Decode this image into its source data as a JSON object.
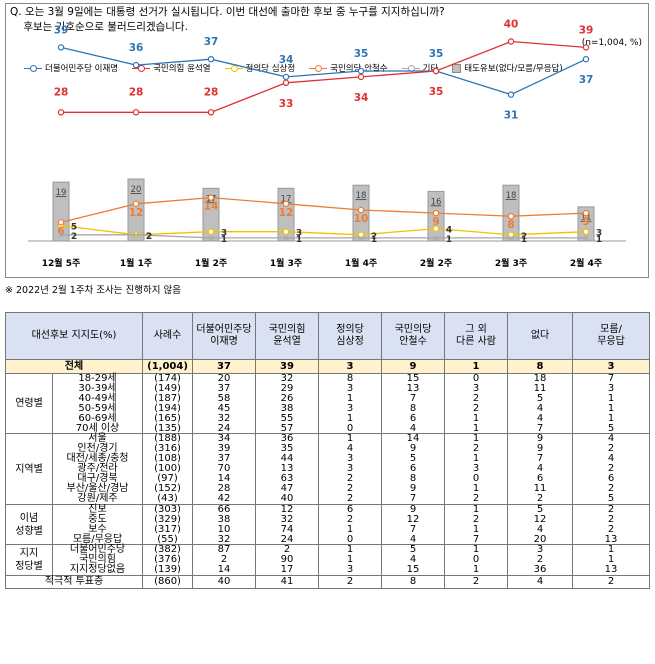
{
  "question": {
    "line1": "Q. 오는 3월 9일에는 대통령 선거가 실시됩니다. 이번 대선에 출마한 후보 중 누구를 지지하십니까?",
    "line2": "    후보는 기호순으로 불러드리겠습니다.",
    "sample": "(n=1,004, %)"
  },
  "footnote": "※ 2022년 2월 1주차 조사는 진행하지 않음",
  "chart_data": {
    "type": "line",
    "title": "",
    "categories": [
      "12월 5주",
      "1월 1주",
      "1월 2주",
      "1월 3주",
      "1월 4주",
      "2월 2주",
      "2월 3주",
      "2월 4주"
    ],
    "series": [
      {
        "name": "더불어민주당 이재명",
        "color": "#2e75b6",
        "values": [
          39,
          36,
          37,
          34,
          35,
          35,
          31,
          37
        ]
      },
      {
        "name": "국민의힘 윤석열",
        "color": "#e03030",
        "values": [
          28,
          28,
          28,
          33,
          34,
          35,
          40,
          39
        ]
      },
      {
        "name": "정의당 심상정",
        "color": "#f2c200",
        "values": [
          5,
          2,
          3,
          3,
          2,
          4,
          2,
          3
        ]
      },
      {
        "name": "국민의당 안철수",
        "color": "#ed7d31",
        "values": [
          6,
          12,
          14,
          12,
          10,
          9,
          8,
          9
        ]
      },
      {
        "name": "기타",
        "color": "#a6a6a6",
        "values": [
          2,
          2,
          1,
          1,
          1,
          1,
          1,
          1
        ]
      },
      {
        "name": "태도유보(없다/모름/무응답)",
        "type": "bar",
        "color": "#bfbfbf",
        "values": [
          19,
          20,
          17,
          17,
          18,
          16,
          18,
          11
        ]
      }
    ]
  },
  "table": {
    "headers": [
      "대선후보 지지도(%)",
      "사례수",
      "더불어민주당\n이재명",
      "국민의힘\n윤석열",
      "정의당\n심상정",
      "국민의당\n안철수",
      "그 외\n다른 사람",
      "없다",
      "모름/\n무응답"
    ],
    "total": {
      "label": "전체",
      "n": "(1,004)",
      "values": [
        "37",
        "39",
        "3",
        "9",
        "1",
        "8",
        "3"
      ]
    },
    "groups": [
      {
        "name": "연령별",
        "rows": [
          {
            "label": "18-29세",
            "n": "(174)",
            "values": [
              "20",
              "32",
              "8",
              "15",
              "0",
              "18",
              "7"
            ]
          },
          {
            "label": "30-39세",
            "n": "(149)",
            "values": [
              "37",
              "29",
              "3",
              "13",
              "3",
              "11",
              "3"
            ]
          },
          {
            "label": "40-49세",
            "n": "(187)",
            "values": [
              "58",
              "26",
              "1",
              "7",
              "2",
              "5",
              "1"
            ]
          },
          {
            "label": "50-59세",
            "n": "(194)",
            "values": [
              "45",
              "38",
              "3",
              "8",
              "2",
              "4",
              "1"
            ]
          },
          {
            "label": "60-69세",
            "n": "(165)",
            "values": [
              "32",
              "55",
              "1",
              "6",
              "1",
              "4",
              "1"
            ]
          },
          {
            "label": "70세 이상",
            "n": "(135)",
            "values": [
              "24",
              "57",
              "0",
              "4",
              "1",
              "7",
              "5"
            ]
          }
        ]
      },
      {
        "name": "지역별",
        "rows": [
          {
            "label": "서울",
            "n": "(188)",
            "values": [
              "34",
              "36",
              "1",
              "14",
              "1",
              "9",
              "4"
            ]
          },
          {
            "label": "인천/경기",
            "n": "(316)",
            "values": [
              "39",
              "35",
              "4",
              "9",
              "2",
              "9",
              "2"
            ]
          },
          {
            "label": "대전/세종/충청",
            "n": "(108)",
            "values": [
              "37",
              "44",
              "3",
              "5",
              "1",
              "7",
              "4"
            ]
          },
          {
            "label": "광주/전라",
            "n": "(100)",
            "values": [
              "70",
              "13",
              "3",
              "6",
              "3",
              "4",
              "2"
            ]
          },
          {
            "label": "대구/경북",
            "n": "(97)",
            "values": [
              "14",
              "63",
              "2",
              "8",
              "0",
              "6",
              "6"
            ]
          },
          {
            "label": "부산/울산/경남",
            "n": "(152)",
            "values": [
              "28",
              "47",
              "2",
              "9",
              "1",
              "11",
              "2"
            ]
          },
          {
            "label": "강원/제주",
            "n": "(43)",
            "values": [
              "42",
              "40",
              "2",
              "7",
              "2",
              "2",
              "5"
            ]
          }
        ]
      },
      {
        "name": "이념\n성향별",
        "rows": [
          {
            "label": "진보",
            "n": "(303)",
            "values": [
              "66",
              "12",
              "6",
              "9",
              "1",
              "5",
              "2"
            ]
          },
          {
            "label": "중도",
            "n": "(329)",
            "values": [
              "38",
              "32",
              "2",
              "12",
              "2",
              "12",
              "2"
            ]
          },
          {
            "label": "보수",
            "n": "(317)",
            "values": [
              "10",
              "74",
              "1",
              "7",
              "1",
              "4",
              "2"
            ]
          },
          {
            "label": "모름/무응답",
            "n": "(55)",
            "values": [
              "32",
              "24",
              "0",
              "4",
              "7",
              "20",
              "13"
            ]
          }
        ]
      },
      {
        "name": "지지\n정당별",
        "rows": [
          {
            "label": "더불어민주당",
            "n": "(382)",
            "values": [
              "87",
              "2",
              "1",
              "5",
              "1",
              "3",
              "1"
            ]
          },
          {
            "label": "국민의힘",
            "n": "(376)",
            "values": [
              "2",
              "90",
              "1",
              "4",
              "0",
              "2",
              "1"
            ]
          },
          {
            "label": "지지정당없음",
            "n": "(139)",
            "values": [
              "14",
              "17",
              "3",
              "15",
              "1",
              "36",
              "13"
            ]
          }
        ]
      }
    ],
    "last": {
      "label": "적극적 투표층",
      "n": "(860)",
      "values": [
        "40",
        "41",
        "2",
        "8",
        "2",
        "4",
        "2"
      ]
    }
  }
}
